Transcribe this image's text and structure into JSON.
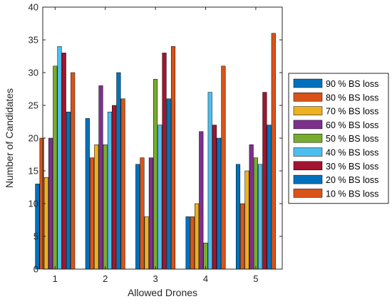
{
  "chart_data": {
    "type": "bar",
    "categories": [
      "1",
      "2",
      "3",
      "4",
      "5"
    ],
    "xlabel": "Allowed Drones",
    "ylabel": "Number of Candidates",
    "ylim": [
      0,
      40
    ],
    "yticks": [
      "0",
      "5",
      "10",
      "15",
      "20",
      "25",
      "30",
      "35",
      "40"
    ],
    "grid": false,
    "legend_position": "right",
    "series": [
      {
        "name": "90 % BS loss",
        "color": "#0072BD",
        "values": [
          13,
          23,
          16,
          8,
          16
        ]
      },
      {
        "name": "80 % BS loss",
        "color": "#D95319",
        "values": [
          20,
          17,
          17,
          8,
          10
        ]
      },
      {
        "name": "70 % BS loss",
        "color": "#EDB120",
        "values": [
          14,
          19,
          8,
          10,
          15
        ]
      },
      {
        "name": "60 % BS loss",
        "color": "#7E2F8E",
        "values": [
          20,
          28,
          17,
          21,
          19
        ]
      },
      {
        "name": "50 % BS loss",
        "color": "#77AC30",
        "values": [
          31,
          19,
          29,
          4,
          17
        ]
      },
      {
        "name": "40 % BS loss",
        "color": "#4DBEEE",
        "values": [
          34,
          24,
          22,
          27,
          16
        ]
      },
      {
        "name": "30 % BS loss",
        "color": "#A2142F",
        "values": [
          33,
          25,
          33,
          22,
          27
        ]
      },
      {
        "name": "20 % BS loss",
        "color": "#0072BD",
        "values": [
          24,
          30,
          26,
          20,
          22
        ]
      },
      {
        "name": "10 % BS loss",
        "color": "#D95319",
        "values": [
          30,
          26,
          34,
          31,
          36
        ]
      }
    ]
  }
}
